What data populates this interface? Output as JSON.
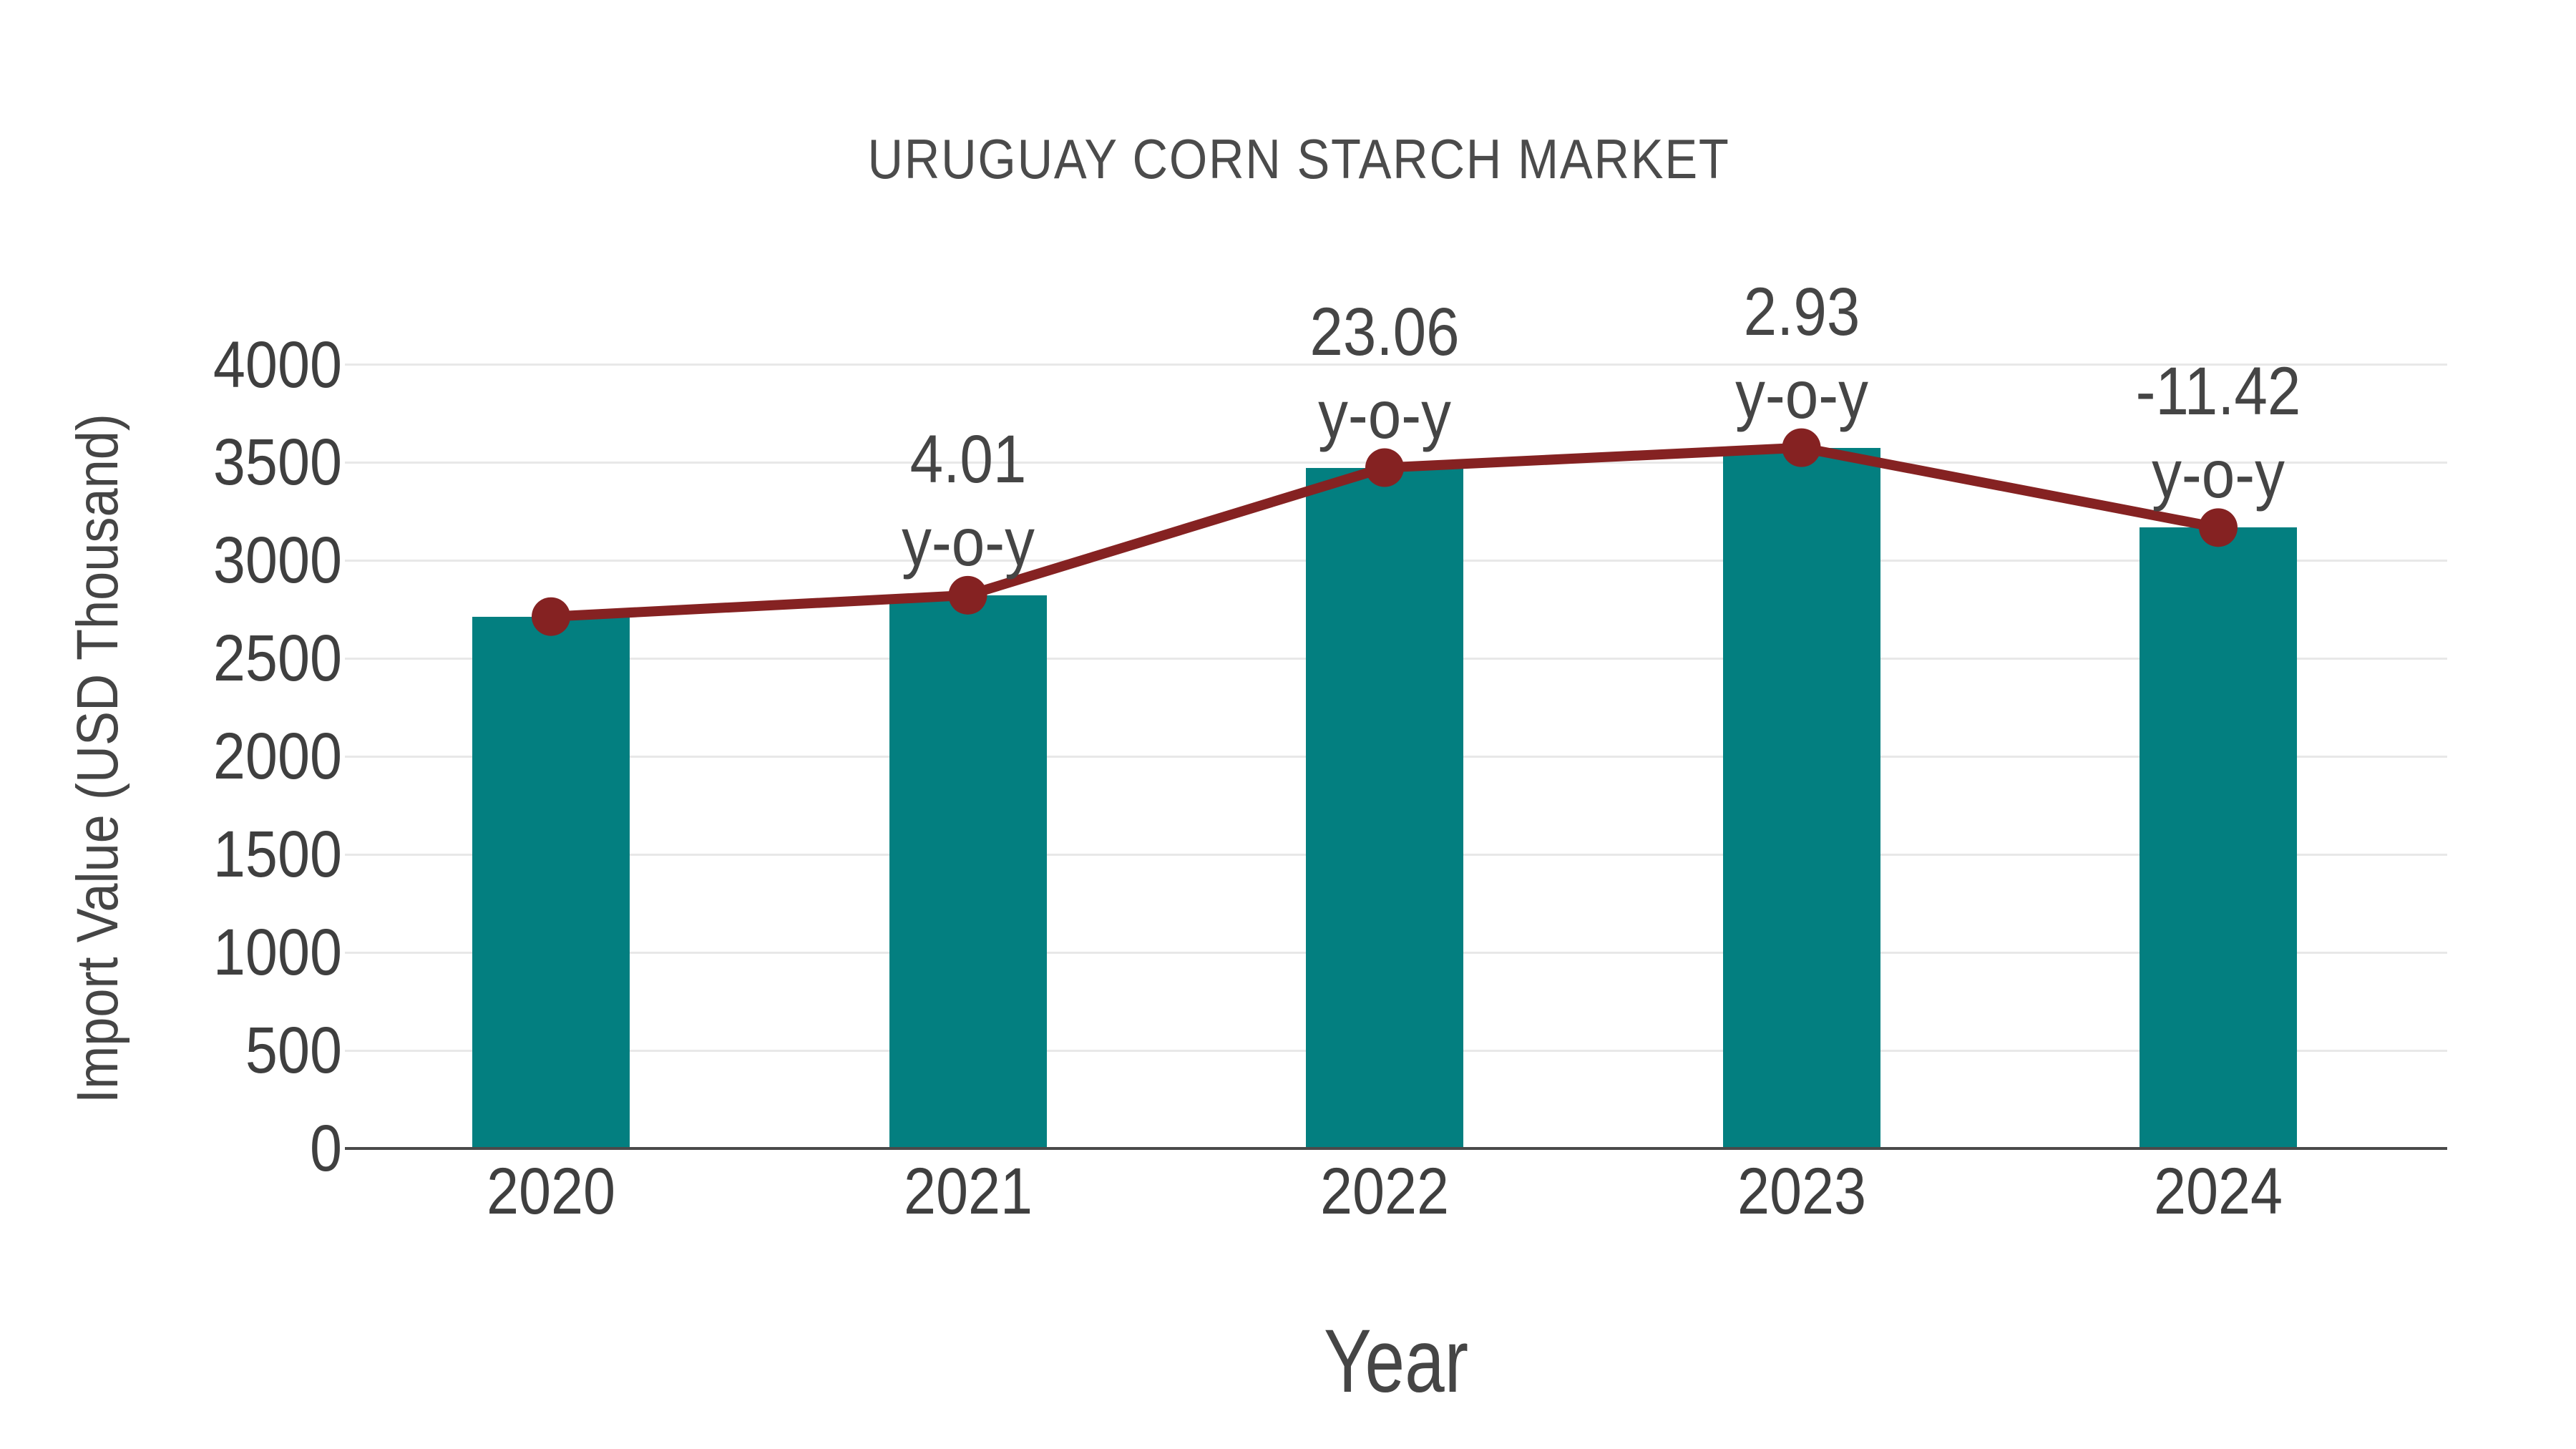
{
  "page": {
    "background": "#ffffff"
  },
  "chart_data": {
    "type": "bar",
    "subtype": "bar+line-combo",
    "title": "URUGUAY CORN STARCH MARKET",
    "xlabel": "Year",
    "ylabel": "Import Value (USD Thousand)",
    "categories": [
      "2020",
      "2021",
      "2022",
      "2023",
      "2024"
    ],
    "series": [
      {
        "name": "Import Value (USD Thousand)",
        "type": "bar",
        "color": "#037f80",
        "values": [
          2714,
          2823,
          3474,
          3576,
          3168
        ]
      },
      {
        "name": "y-o-y growth (%)",
        "type": "line",
        "color": "#852222",
        "plotted_on": "bar-values",
        "values": [
          null,
          4.01,
          23.06,
          2.93,
          -11.42
        ]
      }
    ],
    "point_labels": [
      {
        "category": "2021",
        "line1": "4.01",
        "line2": "y-o-y"
      },
      {
        "category": "2022",
        "line1": "23.06",
        "line2": "y-o-y"
      },
      {
        "category": "2023",
        "line1": "2.93",
        "line2": "y-o-y"
      },
      {
        "category": "2024",
        "line1": "-11.42",
        "line2": "y-o-y"
      }
    ],
    "ylim": [
      0,
      4000
    ],
    "yticks": [
      0,
      500,
      1000,
      1500,
      2000,
      2500,
      3000,
      3500,
      4000
    ],
    "grid": true,
    "legend_position": "none"
  },
  "colors": {
    "bar": "#037f80",
    "line": "#852222",
    "marker": "#852222",
    "gridline": "#e8e8e8",
    "axis_line": "#4a4a4a",
    "tick_text": "#3f3f3f",
    "label_text": "#454545",
    "title_text": "#4b4b4b",
    "background": "#ffffff"
  }
}
